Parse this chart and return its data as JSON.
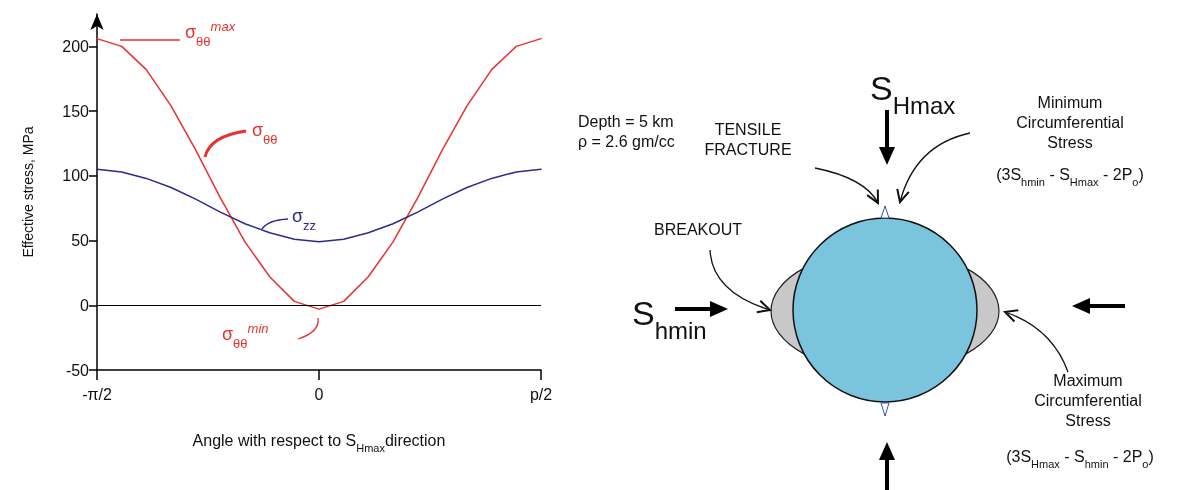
{
  "chart_data": {
    "type": "line",
    "xlabel": "Angle with respect to  S$_{Hmax}$direction",
    "ylabel": "Effective stress, MPa",
    "x": [
      -1.571,
      -1.396,
      -1.222,
      -1.047,
      -0.873,
      -0.698,
      -0.524,
      -0.349,
      -0.175,
      0,
      0.175,
      0.349,
      0.524,
      0.698,
      0.873,
      1.047,
      1.222,
      1.396,
      1.571
    ],
    "series": [
      {
        "color": "#e8322e",
        "values": [
          206,
          200,
          182,
          154,
          120,
          83,
          49,
          22,
          3,
          -3,
          3,
          22,
          49,
          83,
          120,
          154,
          182,
          200,
          206
        ]
      },
      {
        "color": "#2b2b8f",
        "values": [
          105,
          103,
          98,
          91,
          82,
          72,
          63,
          56,
          51,
          49,
          51,
          56,
          63,
          72,
          82,
          91,
          98,
          103,
          105
        ]
      }
    ],
    "xlim": [
      -1.571,
      1.571
    ],
    "xticks": [
      {
        "value": -1.571,
        "label": "-π/2"
      },
      0,
      {
        "value": 1.571,
        "label": "p/2"
      }
    ],
    "ylim": [
      -50,
      225
    ],
    "yticks": [
      -50,
      0,
      50,
      100,
      150,
      200
    ],
    "ref_lines": [
      {
        "axis": "y",
        "value": 0,
        "color": "#000000"
      }
    ],
    "grid": false,
    "marker": "none",
    "line_style": "solid",
    "annotations": [
      "σ$_{θθ}$$^{max}$",
      "σ$_{θθ}$",
      "σ$_{zz}$",
      "σ$_{θθ}$$^{min}$",
      "Depth = 5 km",
      "ρ = 2.6 gm/cc",
      "S$_{Hmax}$",
      "Minimum Circumferential Stress",
      "(3S$_{hmin}$  - S$_{Hmax}$ - 2P$_{o}$)",
      "TENSILE FRACTURE",
      "BREAKOUT",
      "S$_{hmin}$",
      "Maximum Circumferential Stress",
      "(3S$_{Hmax}$  - S$_{hmin}$ - 2P$_{o}$)"
    ]
  }
}
